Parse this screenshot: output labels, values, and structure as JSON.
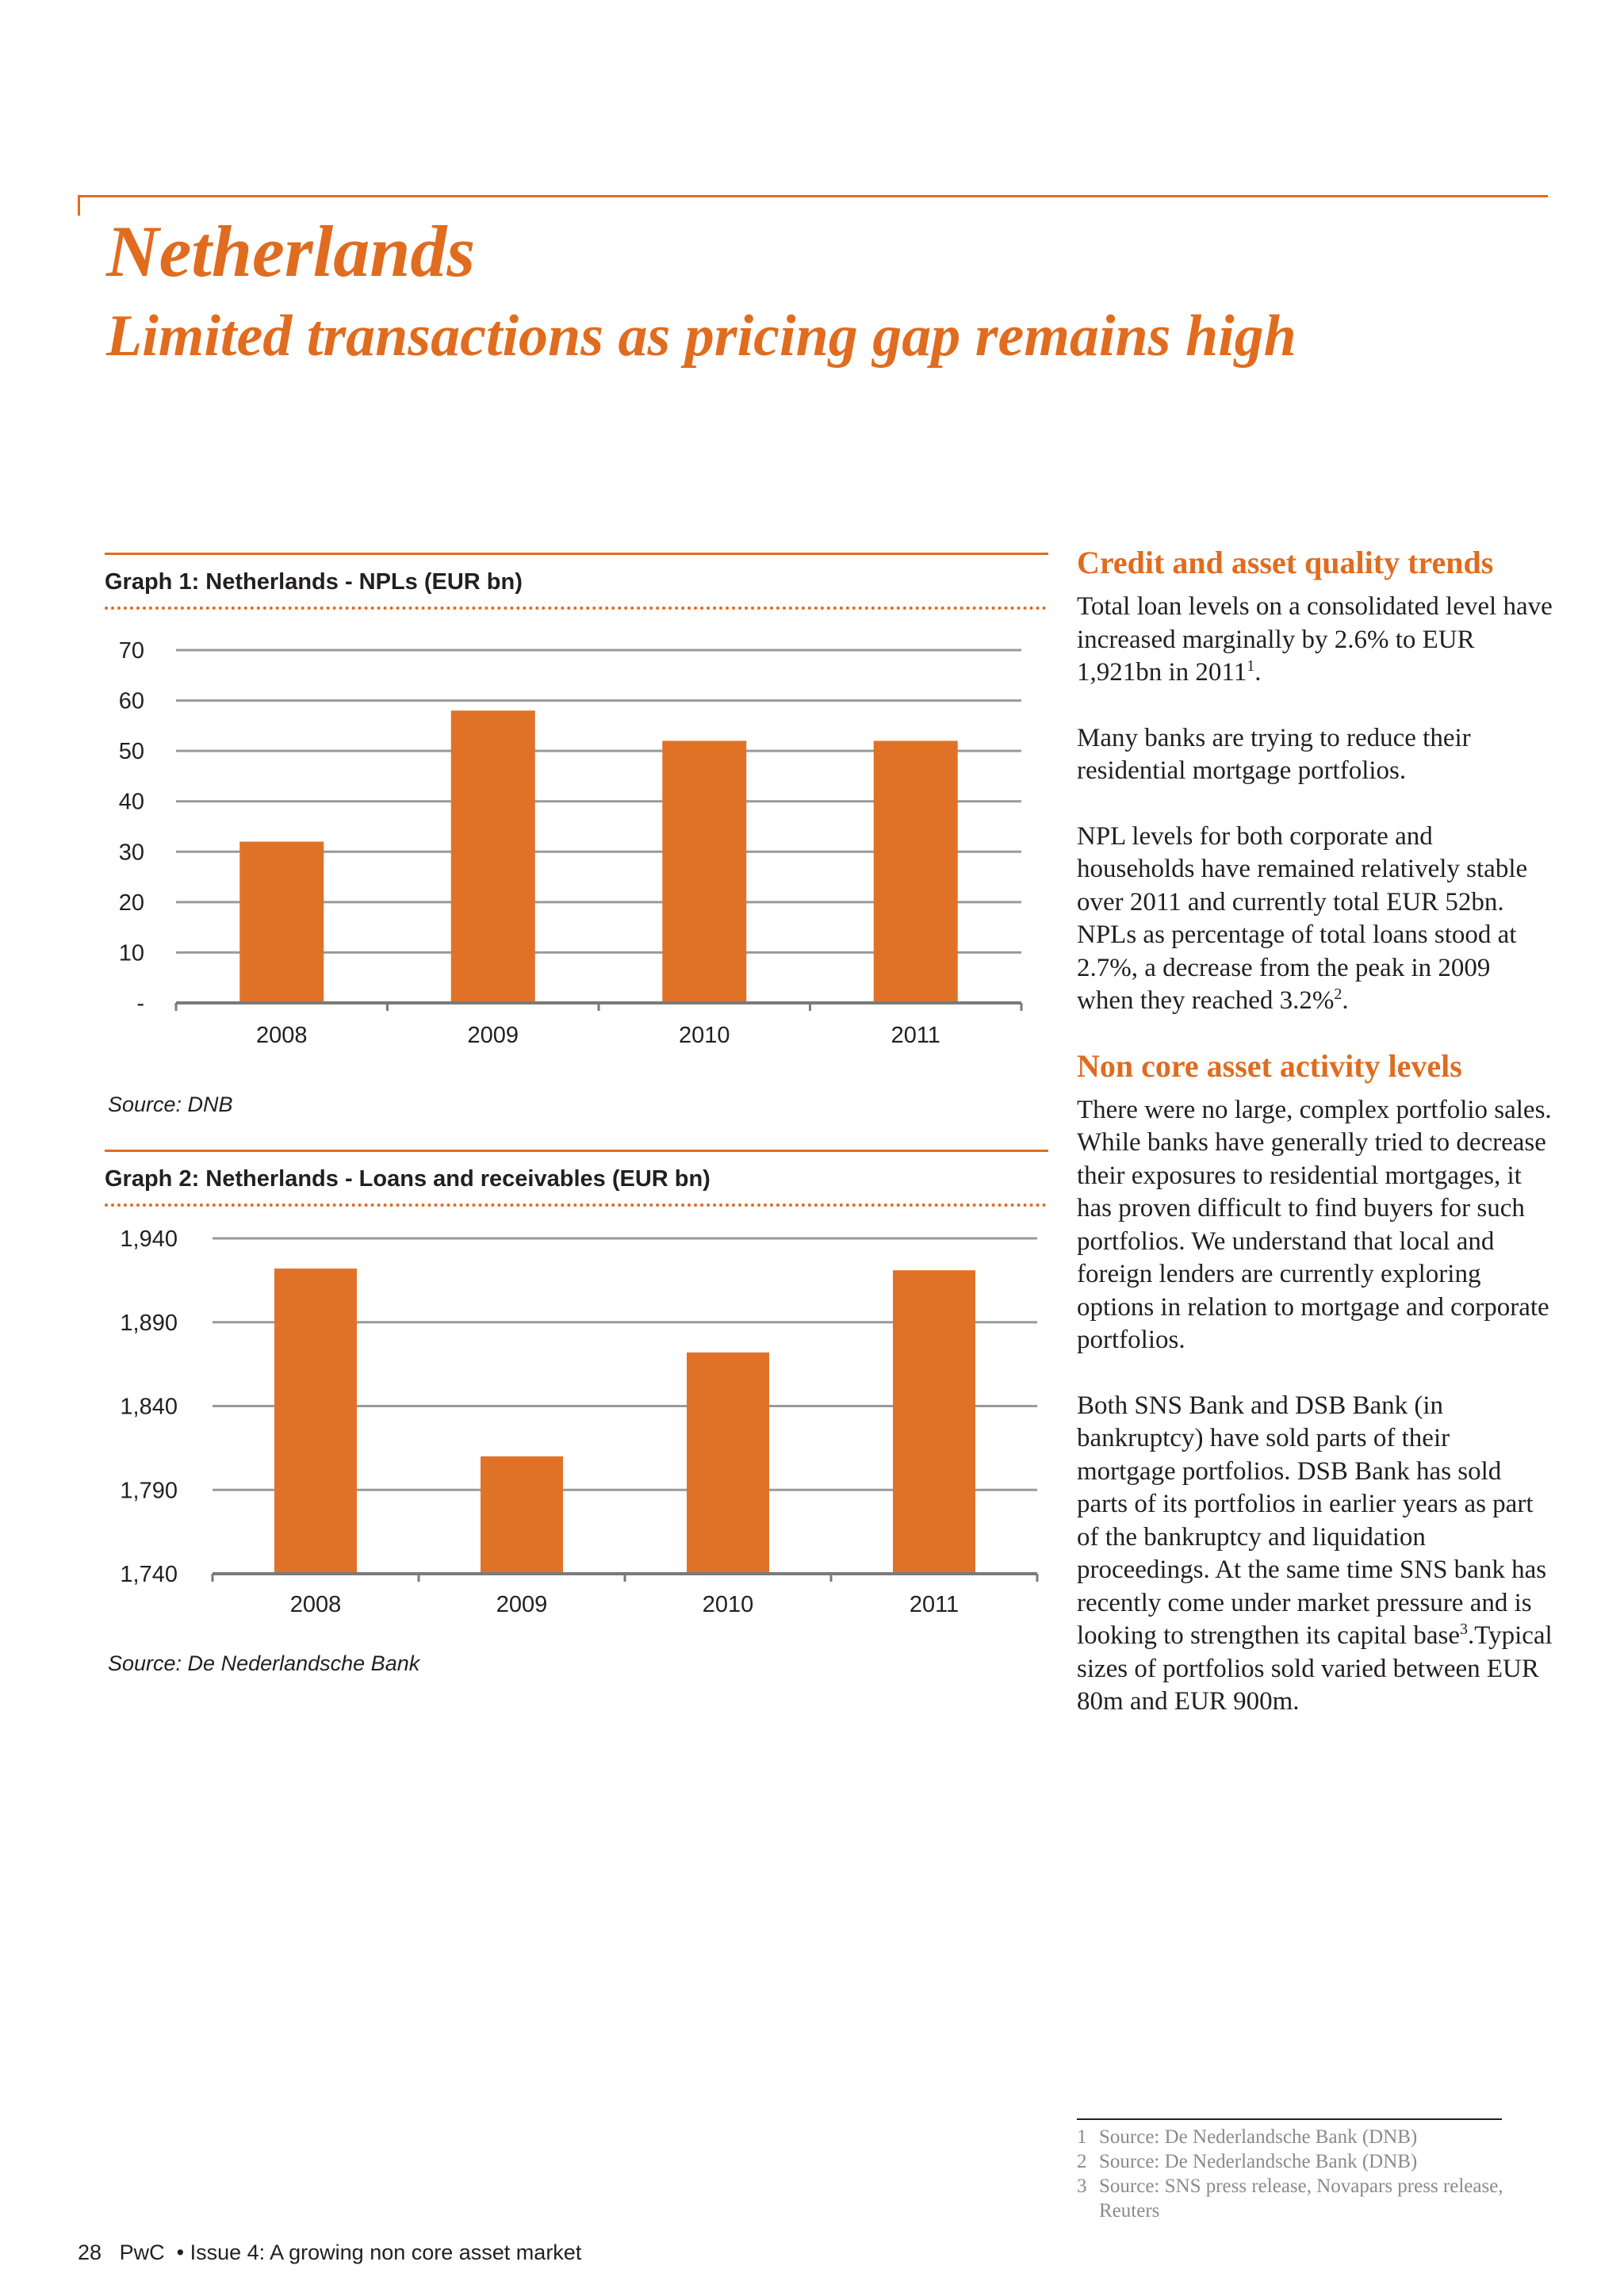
{
  "title": "Netherlands",
  "subtitle": "Limited transactions as pricing gap remains high",
  "colors": {
    "accent": "#e06c1f",
    "bar": "#e07228",
    "grid": "#9a9a9a",
    "text": "#231f20",
    "footnote": "#8a8a8a"
  },
  "graph1": {
    "title": "Graph 1: Netherlands - NPLs (EUR bn)",
    "source": "Source: DNB",
    "yticks": [
      "-",
      "10",
      "20",
      "30",
      "40",
      "50",
      "60",
      "70"
    ]
  },
  "graph2": {
    "title": "Graph 2: Netherlands - Loans and receivables (EUR bn)",
    "source": "Source: De Nederlandsche Bank",
    "yticks": [
      "1,740",
      "1,790",
      "1,840",
      "1,890",
      "1,940"
    ]
  },
  "chart_data": [
    {
      "type": "bar",
      "title": "Graph 1: Netherlands - NPLs (EUR bn)",
      "categories": [
        "2008",
        "2009",
        "2010",
        "2011"
      ],
      "values": [
        32,
        58,
        52,
        52
      ],
      "ylim": [
        0,
        70
      ],
      "grid": true
    },
    {
      "type": "bar",
      "title": "Graph 2: Netherlands - Loans and receivables (EUR bn)",
      "categories": [
        "2008",
        "2009",
        "2010",
        "2011"
      ],
      "values": [
        1922,
        1810,
        1872,
        1921
      ],
      "ylim": [
        1740,
        1940
      ],
      "grid": true
    }
  ],
  "right_column": {
    "section1_heading": "Credit and asset quality trends",
    "p1": "Total loan levels on a consolidated level have increased marginally by 2.6% to EUR 1,921bn in 2011",
    "p1_sup": "1",
    "p1_end": ".",
    "p2": "Many banks are trying to reduce their residential mortgage portfolios.",
    "p3": "NPL levels for both corporate and households have remained relatively stable over 2011 and currently total EUR 52bn. NPLs as percentage of total loans stood at 2.7%, a decrease from the peak in 2009 when they reached 3.2%",
    "p3_sup": "2",
    "p3_end": ".",
    "section2_heading": "Non core asset activity levels",
    "p4": "There were no large, complex portfolio sales. While banks have generally tried to decrease their exposures to residential mortgages, it has proven difficult to find buyers for such portfolios. We understand that local and foreign lenders are currently exploring options in relation to mortgage and corporate portfolios.",
    "p5": "Both SNS Bank and DSB Bank (in bankruptcy) have sold parts of their mortgage portfolios. DSB Bank has sold parts of its portfolios in earlier years as part of the bankruptcy and liquidation proceedings. At the same time SNS bank has recently come  under market pressure and is looking to strengthen its capital base",
    "p5_sup": "3",
    "p5_end": ".Typical sizes of portfolios sold varied between EUR 80m and EUR 900m."
  },
  "footnotes": [
    {
      "num": "1",
      "text": "Source: De Nederlandsche Bank (DNB)"
    },
    {
      "num": "2",
      "text": "Source: De Nederlandsche Bank (DNB)"
    },
    {
      "num": "3",
      "text": "Source: SNS press release, Novapars press release, Reuters"
    }
  ],
  "footer": {
    "page": "28",
    "brand": "PwC",
    "bullet": "•",
    "issue": "Issue 4: A growing non core asset market"
  }
}
